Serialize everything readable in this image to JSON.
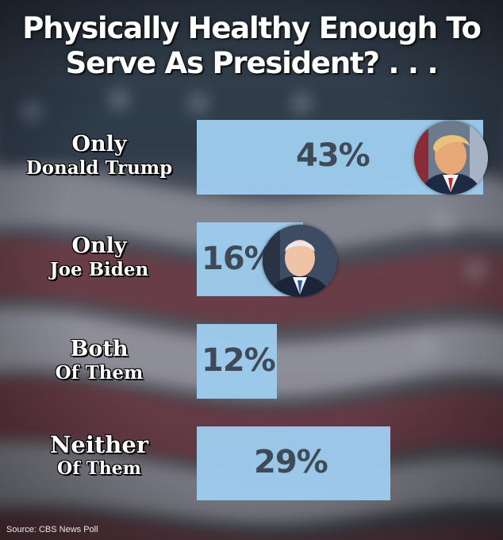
{
  "title_line1": "Physically Healthy Enough To",
  "title_line2": "Serve As President? . . .",
  "colors": {
    "bar": "#9dcbec",
    "value_text": "#3e4a57",
    "label_text": "#ffffff"
  },
  "chart_data": {
    "type": "bar",
    "orientation": "horizontal",
    "categories": [
      {
        "line1": "Only",
        "line2": "Donald Trump"
      },
      {
        "line1": "Only",
        "line2": "Joe Biden"
      },
      {
        "line1": "Both",
        "line2": "Of Them"
      },
      {
        "line1": "Neither",
        "line2": "Of Them"
      }
    ],
    "values": [
      43,
      16,
      12,
      29
    ],
    "value_labels": [
      "43%",
      "16%",
      "12%",
      "29%"
    ],
    "unit": "%",
    "grid": false,
    "legend": "none"
  },
  "source": "Source: CBS News Poll"
}
